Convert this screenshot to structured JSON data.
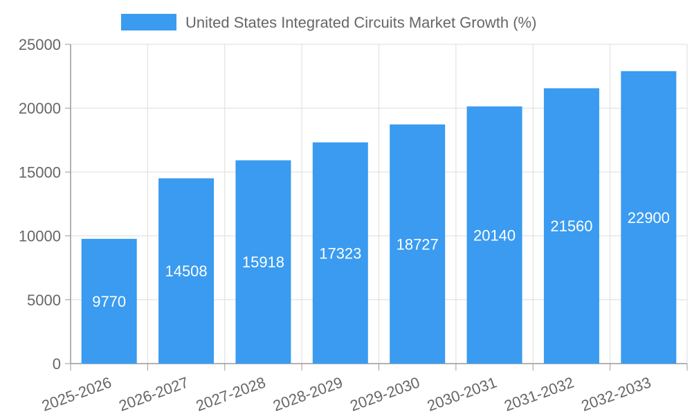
{
  "chart_data": {
    "type": "bar",
    "legend": {
      "placement": "top-center",
      "entries": [
        "United States Integrated Circuits Market Growth (%)"
      ]
    },
    "categories": [
      "2025-2026",
      "2026-2027",
      "2027-2028",
      "2028-2029",
      "2029-2030",
      "2030-2031",
      "2031-2032",
      "2032-2033"
    ],
    "series": [
      {
        "name": "United States Integrated Circuits Market Growth (%)",
        "values": [
          9770,
          14508,
          15918,
          17323,
          18727,
          20140,
          21560,
          22900
        ],
        "color": "#3a9bf0"
      }
    ],
    "ylim": [
      0,
      25000
    ],
    "yticks": [
      0,
      5000,
      10000,
      15000,
      20000,
      25000
    ],
    "grid": true,
    "data_labels": true,
    "xlabel": "",
    "ylabel": ""
  }
}
